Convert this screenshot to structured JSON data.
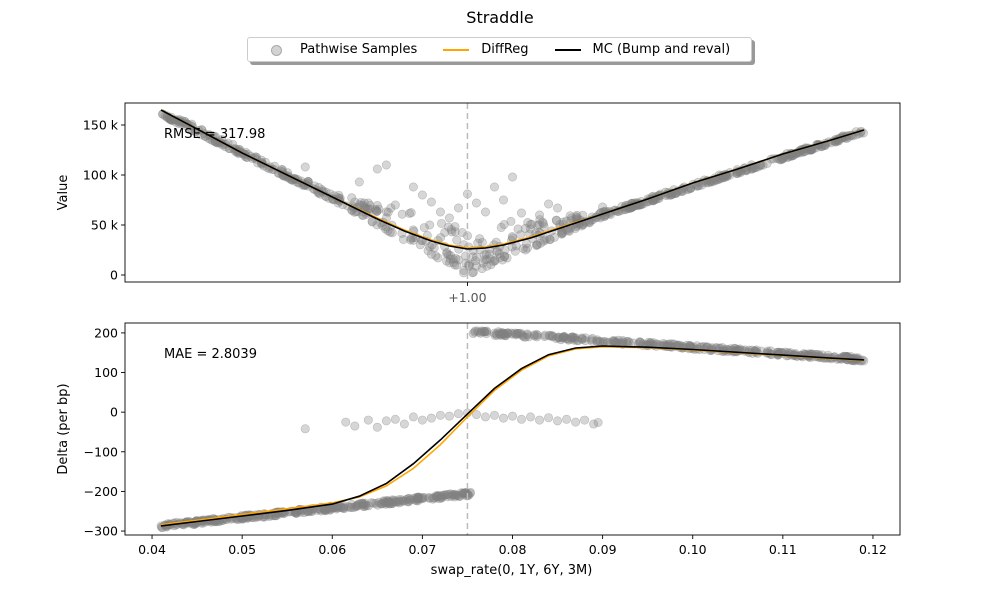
{
  "title": "Straddle",
  "legend": {
    "position": "upper-center",
    "items": [
      {
        "label": "Pathwise Samples",
        "marker": "circle",
        "color": "#808080"
      },
      {
        "label": "DiffReg",
        "marker": "line",
        "color": "#ffa500"
      },
      {
        "label": "MC (Bump and reval)",
        "marker": "line",
        "color": "#000000"
      }
    ]
  },
  "colors": {
    "samples": "#808080",
    "diffreg": "#ffa500",
    "mc": "#000000",
    "strike": "#bbbbbb"
  },
  "chart_data": [
    {
      "type": "scatter",
      "ylabel": "Value",
      "annotation": "RMSE = 317.98",
      "xlim": [
        0.037,
        0.123
      ],
      "ylim": [
        -7000,
        172000
      ],
      "yticks": [
        0,
        50000,
        100000,
        150000
      ],
      "ytick_labels": [
        "0",
        "50 k",
        "100 k",
        "150 k"
      ],
      "xtick_positions": [
        0.075
      ],
      "xtick_labels": [
        "+1.00"
      ],
      "strike": 0.075,
      "series": [
        {
          "name": "MC (Bump and reval)",
          "x": [
            0.041,
            0.045,
            0.05,
            0.055,
            0.06,
            0.065,
            0.068,
            0.071,
            0.073,
            0.075,
            0.077,
            0.079,
            0.082,
            0.085,
            0.09,
            0.095,
            0.1,
            0.105,
            0.11,
            0.115,
            0.119
          ],
          "y": [
            165000,
            146000,
            122000,
            100000,
            78000,
            56000,
            44000,
            34000,
            29000,
            26000,
            27000,
            30000,
            37000,
            46000,
            61000,
            76000,
            92000,
            106000,
            121000,
            134000,
            145000
          ]
        },
        {
          "name": "DiffReg",
          "x": [
            0.041,
            0.045,
            0.05,
            0.055,
            0.06,
            0.065,
            0.068,
            0.071,
            0.073,
            0.075,
            0.077,
            0.079,
            0.082,
            0.085,
            0.09,
            0.095,
            0.1,
            0.105,
            0.11,
            0.115,
            0.119
          ],
          "y": [
            165000,
            146000,
            122000,
            100000,
            78000,
            57000,
            45000,
            35000,
            30000,
            27000,
            28000,
            31000,
            38000,
            47000,
            61000,
            76000,
            92000,
            106000,
            121000,
            134000,
            145000
          ]
        },
        {
          "name": "Pathwise Samples",
          "band": {
            "low_x": [
              0.041,
              0.06,
              0.075,
              0.09,
              0.119
            ],
            "low_y": [
              160000,
              75000,
              0,
              58000,
              142000
            ],
            "high_x": [
              0.041,
              0.06,
              0.075,
              0.09,
              0.119
            ],
            "high_y": [
              166000,
              82000,
              50000,
              63000,
              146000
            ]
          },
          "scatter_x": [
            0.057,
            0.063,
            0.064,
            0.065,
            0.066,
            0.067,
            0.069,
            0.07,
            0.071,
            0.072,
            0.073,
            0.074,
            0.075,
            0.076,
            0.077,
            0.078,
            0.079,
            0.08,
            0.081,
            0.082,
            0.083,
            0.084,
            0.085,
            0.086,
            0.09
          ],
          "scatter_y": [
            108000,
            93000,
            66000,
            106000,
            110000,
            70000,
            88000,
            80000,
            73000,
            63000,
            57000,
            67000,
            81000,
            72000,
            63000,
            88000,
            75000,
            98000,
            62000,
            46000,
            60000,
            71000,
            67000,
            54000,
            68000
          ]
        }
      ]
    },
    {
      "type": "scatter",
      "xlabel": "swap_rate(0, 1Y, 6Y, 3M)",
      "ylabel": "Delta (per bp)",
      "annotation": "MAE = 2.8039",
      "xlim": [
        0.037,
        0.123
      ],
      "ylim": [
        -310,
        225
      ],
      "yticks": [
        -300,
        -200,
        -100,
        0,
        100,
        200
      ],
      "ytick_labels": [
        "−300",
        "−200",
        "−100",
        "0",
        "100",
        "200"
      ],
      "xticks": [
        0.04,
        0.05,
        0.06,
        0.07,
        0.08,
        0.09,
        0.1,
        0.11,
        0.12
      ],
      "xtick_labels": [
        "0.04",
        "0.05",
        "0.06",
        "0.07",
        "0.08",
        "0.09",
        "0.10",
        "0.11",
        "0.12"
      ],
      "strike": 0.075,
      "series": [
        {
          "name": "MC (Bump and reval)",
          "x": [
            0.041,
            0.045,
            0.05,
            0.055,
            0.06,
            0.063,
            0.066,
            0.069,
            0.072,
            0.075,
            0.078,
            0.081,
            0.084,
            0.087,
            0.09,
            0.095,
            0.1,
            0.105,
            0.11,
            0.115,
            0.119
          ],
          "y": [
            -287,
            -276,
            -262,
            -248,
            -232,
            -212,
            -180,
            -130,
            -70,
            -5,
            60,
            110,
            145,
            162,
            167,
            164,
            158,
            151,
            144,
            137,
            132
          ]
        },
        {
          "name": "DiffReg",
          "x": [
            0.041,
            0.045,
            0.05,
            0.055,
            0.06,
            0.063,
            0.066,
            0.069,
            0.072,
            0.075,
            0.078,
            0.081,
            0.084,
            0.087,
            0.09,
            0.095,
            0.1,
            0.105,
            0.11,
            0.115,
            0.119
          ],
          "y": [
            -284,
            -273,
            -258,
            -244,
            -229,
            -214,
            -186,
            -142,
            -82,
            -12,
            55,
            106,
            142,
            160,
            165,
            163,
            157,
            150,
            143,
            136,
            131
          ]
        },
        {
          "name": "Pathwise Samples",
          "segments": [
            {
              "x": [
                0.041,
                0.0755
              ],
              "y": [
                -287,
                -205
              ],
              "spread": 5
            },
            {
              "x": [
                0.0755,
                0.119
              ],
              "y": [
                203,
                133
              ],
              "spread": 5
            }
          ],
          "scatter_x": [
            0.057,
            0.0615,
            0.0625,
            0.064,
            0.065,
            0.066,
            0.067,
            0.068,
            0.069,
            0.07,
            0.071,
            0.072,
            0.073,
            0.074,
            0.075,
            0.076,
            0.077,
            0.078,
            0.079,
            0.08,
            0.081,
            0.082,
            0.083,
            0.084,
            0.085,
            0.086,
            0.087,
            0.088,
            0.089,
            0.0895
          ],
          "scatter_y": [
            -42,
            -25,
            -35,
            -20,
            -38,
            -22,
            -18,
            -30,
            -12,
            -20,
            -15,
            -8,
            -10,
            -4,
            -2,
            -6,
            -12,
            -8,
            -15,
            -10,
            -18,
            -12,
            -20,
            -14,
            -22,
            -18,
            -25,
            -20,
            -30,
            -26
          ]
        }
      ]
    }
  ]
}
